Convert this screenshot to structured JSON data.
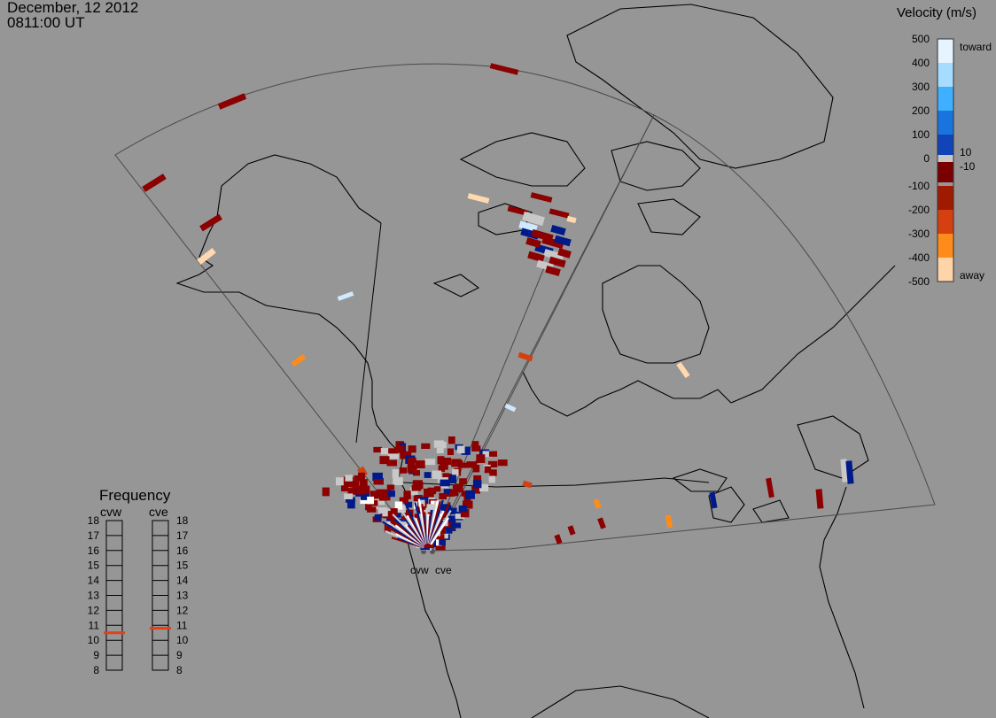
{
  "header": {
    "date": "December, 12 2012",
    "time": "0811:00 UT"
  },
  "velocity_scale": {
    "title": "Velocity (m/s)",
    "ticks": [
      "500",
      "400",
      "300",
      "200",
      "100",
      "0",
      "-100",
      "-200",
      "-300",
      "-400",
      "-500"
    ],
    "toward_label": "toward",
    "away_label": "away",
    "pos_threshold": "10",
    "neg_threshold": "-10",
    "colors": [
      "#e6f4ff",
      "#a6dcff",
      "#3fb0ff",
      "#1a74e0",
      "#1044b8",
      "#001d8a",
      "#7a0000",
      "#a01a00",
      "#d44010",
      "#ff8c1a",
      "#ffd4a8"
    ]
  },
  "radars": {
    "west_label": "cvw",
    "east_label": "cve"
  },
  "frequency": {
    "title": "Frequency",
    "columns": [
      "cvw",
      "cve"
    ],
    "levels": [
      "18",
      "17",
      "16",
      "15",
      "14",
      "13",
      "12",
      "11",
      "10",
      "9",
      "8"
    ],
    "cvw_mhz": 10.5,
    "cve_mhz": 10.8,
    "marker_color": "#e0401a"
  },
  "gray_color": "#c8c8c8"
}
